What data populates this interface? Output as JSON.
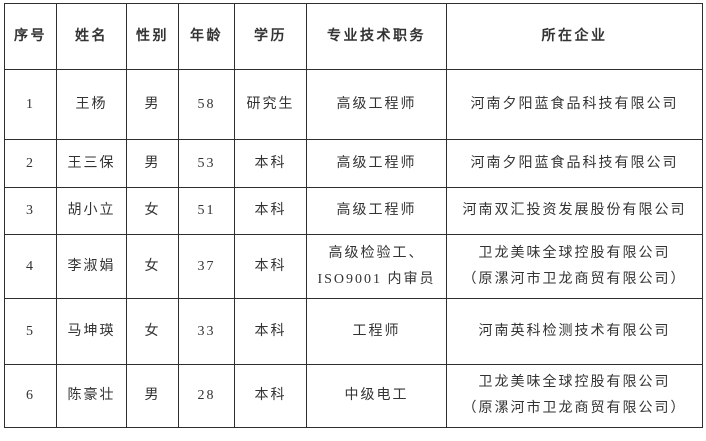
{
  "colors": {
    "background": "#ffffff",
    "border": "#2e2e2e",
    "text": "#333333"
  },
  "table": {
    "columns": [
      {
        "key": "index",
        "label": "序号"
      },
      {
        "key": "name",
        "label": "姓名"
      },
      {
        "key": "gender",
        "label": "性别"
      },
      {
        "key": "age",
        "label": "年龄"
      },
      {
        "key": "education",
        "label": "学历"
      },
      {
        "key": "title",
        "label": "专业技术职务"
      },
      {
        "key": "company",
        "label": "所在企业"
      }
    ],
    "rows": [
      {
        "index": "1",
        "name": "王杨",
        "gender": "男",
        "age": "58",
        "education": "研究生",
        "title": "高级工程师",
        "company": "河南夕阳蓝食品科技有限公司"
      },
      {
        "index": "2",
        "name": "王三保",
        "gender": "男",
        "age": "53",
        "education": "本科",
        "title": "高级工程师",
        "company": "河南夕阳蓝食品科技有限公司"
      },
      {
        "index": "3",
        "name": "胡小立",
        "gender": "女",
        "age": "51",
        "education": "本科",
        "title": "高级工程师",
        "company": "河南双汇投资发展股份有限公司"
      },
      {
        "index": "4",
        "name": "李淑娟",
        "gender": "女",
        "age": "37",
        "education": "本科",
        "title": "高级检验工、\nISO9001 内审员",
        "company": "卫龙美味全球控股有限公司\n（原漯河市卫龙商贸有限公司）"
      },
      {
        "index": "5",
        "name": "马坤瑛",
        "gender": "女",
        "age": "33",
        "education": "本科",
        "title": "工程师",
        "company": "河南英科检测技术有限公司"
      },
      {
        "index": "6",
        "name": "陈豪壮",
        "gender": "男",
        "age": "28",
        "education": "本科",
        "title": "中级电工",
        "company": "卫龙美味全球控股有限公司\n（原漯河市卫龙商贸有限公司）"
      }
    ]
  }
}
